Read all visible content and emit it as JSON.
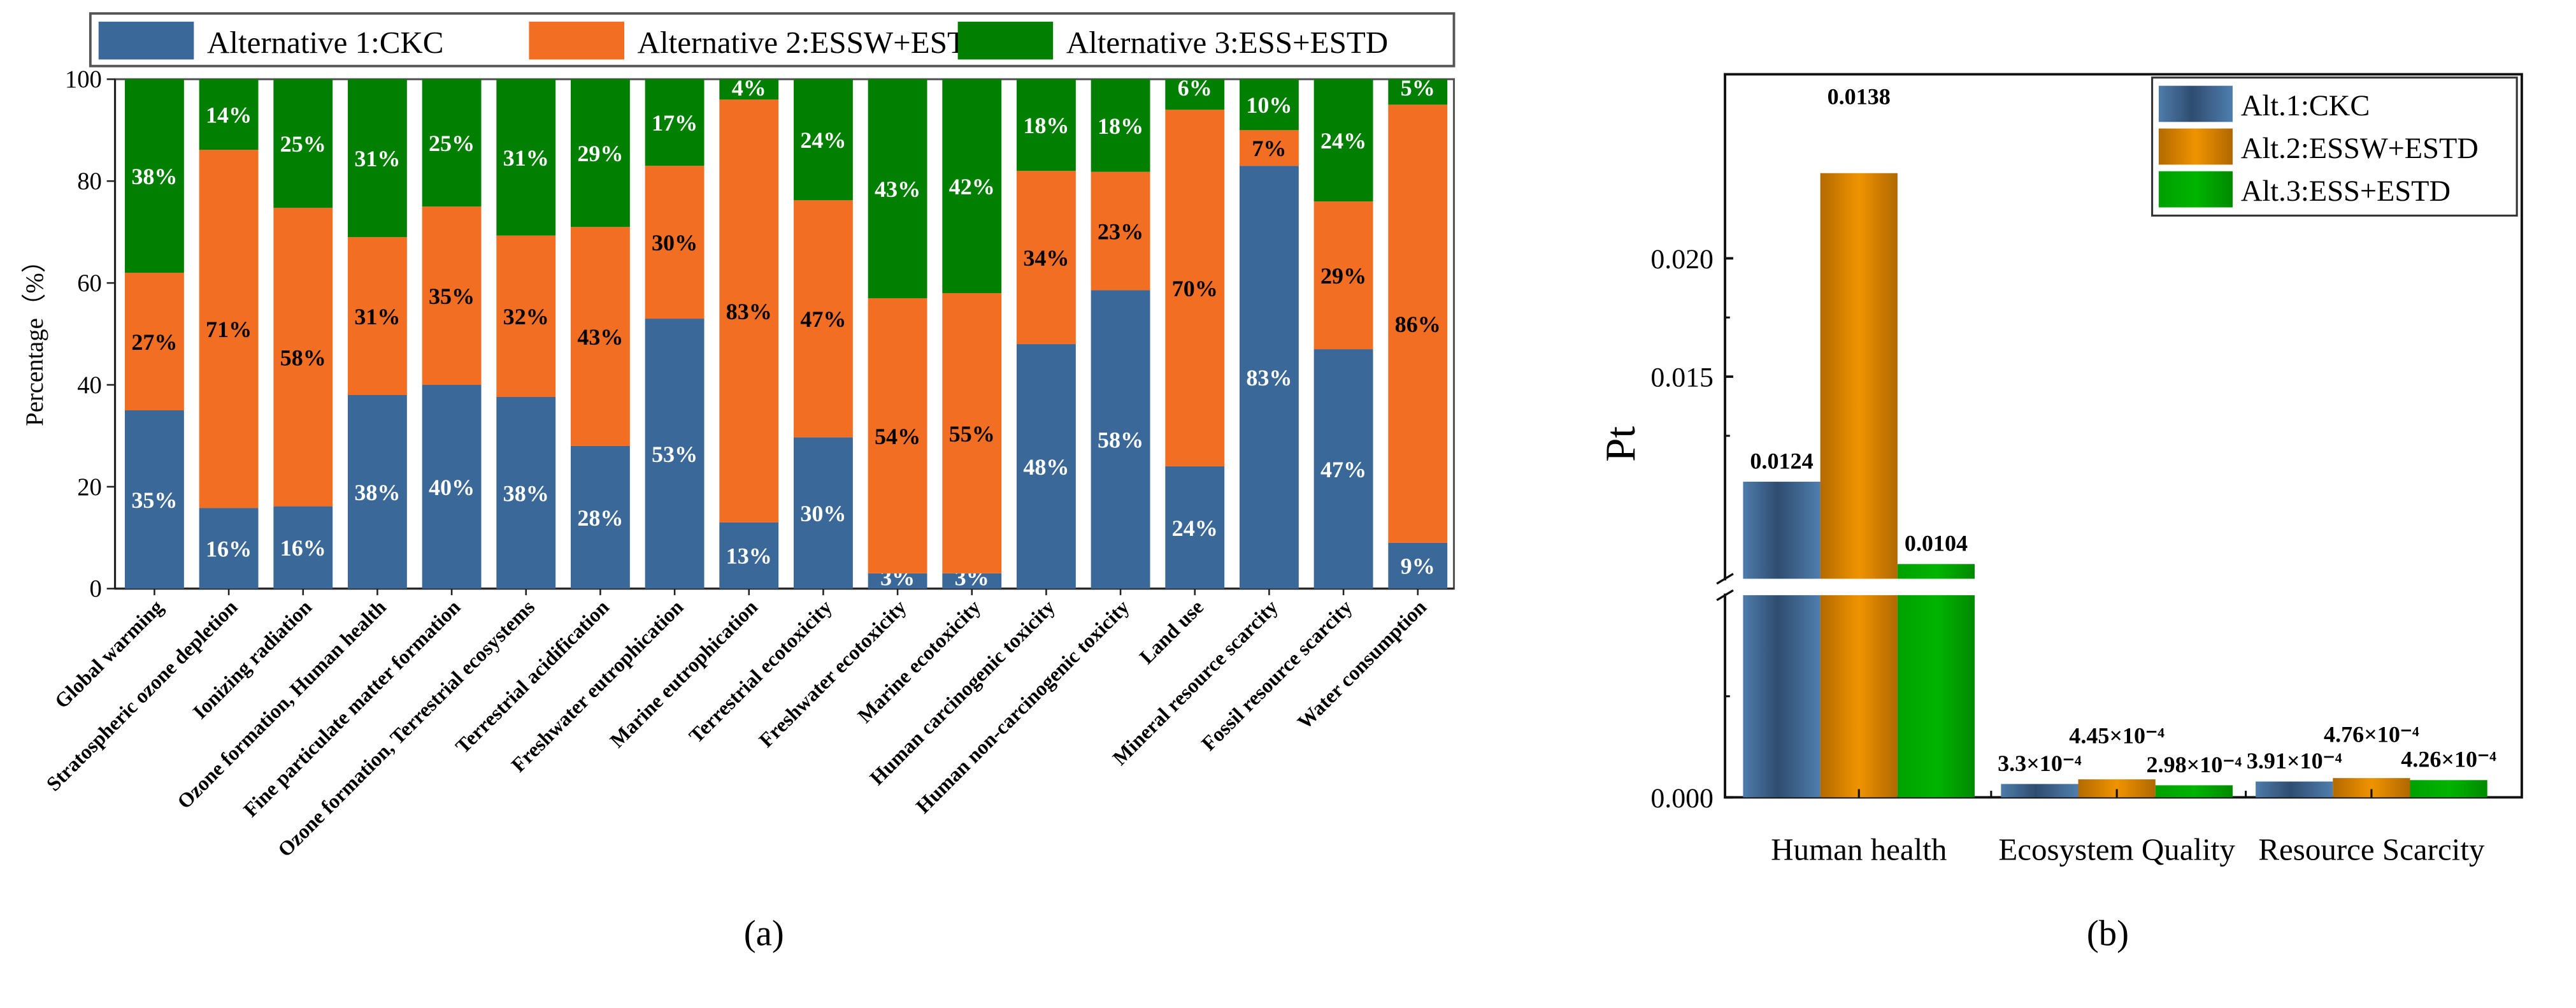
{
  "chart_data": [
    {
      "panel_label": "(a)",
      "type": "bar",
      "stacked": true,
      "ylabel": "Percentage（%）",
      "ylim": [
        0,
        100
      ],
      "yticks": [
        "0",
        "20",
        "40",
        "60",
        "80",
        "100"
      ],
      "legend_position": "top",
      "categories": [
        "Global warming",
        "Stratospheric ozone depletion",
        "Ionizing radiation",
        "Ozone formation, Human health",
        "Fine particulate matter formation",
        "Ozone formation, Terrestrial ecosystems",
        "Terrestrial acidification",
        "Freshwater eutrophication",
        "Marine eutrophication",
        "Terrestrial ecotoxicity",
        "Freshwater ecotoxicity",
        "Marine ecotoxicity",
        "Human carcinogenic toxicity",
        "Human non-carcinogenic toxicity",
        "Land use",
        "Mineral resource scarcity",
        "Fossil resource scarcity",
        "Water consumption"
      ],
      "series": [
        {
          "name": "Alternative 1:CKC",
          "color": "#3a6898",
          "label_color": "#ffffff",
          "values": [
            35,
            16,
            16,
            38,
            40,
            38,
            28,
            53,
            13,
            30,
            3,
            3,
            48,
            58,
            24,
            83,
            47,
            9
          ],
          "labels": [
            "35%",
            "16%",
            "16%",
            "38%",
            "40%",
            "38%",
            "28%",
            "53%",
            "13%",
            "30%",
            "3%",
            "3%",
            "48%",
            "58%",
            "24%",
            "83%",
            "47%",
            "9%"
          ]
        },
        {
          "name": "Alternative 2:ESSW+ESTD",
          "color": "#f26e22",
          "label_color": "#000000",
          "values": [
            27,
            71,
            58,
            31,
            35,
            32,
            43,
            30,
            83,
            47,
            54,
            55,
            34,
            23,
            70,
            7,
            29,
            86
          ],
          "labels": [
            "27%",
            "71%",
            "58%",
            "31%",
            "35%",
            "32%",
            "43%",
            "30%",
            "83%",
            "47%",
            "54%",
            "55%",
            "34%",
            "23%",
            "70%",
            "7%",
            "29%",
            "86%"
          ]
        },
        {
          "name": "Alternative 3:ESS+ESTD",
          "color": "#007f00",
          "label_color": "#ffffff",
          "values": [
            38,
            14,
            25,
            31,
            25,
            31,
            29,
            17,
            4,
            24,
            43,
            42,
            18,
            18,
            6,
            10,
            24,
            5
          ],
          "labels": [
            "38%",
            "14%",
            "25%",
            "31%",
            "25%",
            "31%",
            "29%",
            "17%",
            "4%",
            "24%",
            "43%",
            "42%",
            "18%",
            "18%",
            "6%",
            "10%",
            "24%",
            "5%"
          ]
        }
      ]
    },
    {
      "panel_label": "(b)",
      "type": "bar",
      "ylabel": "Pt",
      "yticks": [
        "0.000",
        "0.015",
        "0.020"
      ],
      "ytick_values": [
        0,
        0.015,
        0.02
      ],
      "axis_break": [
        0.005,
        0.0065
      ],
      "legend_position": "top-right",
      "categories": [
        "Human health",
        "Ecosystem Quality",
        "Resource Scarcity"
      ],
      "series": [
        {
          "name": "Alt.1:CKC",
          "color": "#3d6694",
          "values": [
            0.0124,
            0.00033,
            0.000391
          ],
          "plotted_values": [
            0.01056,
            0.00033,
            0.000391
          ],
          "labels": [
            "0.0124",
            "3.3×10⁻⁴",
            "3.91×10⁻⁴"
          ]
        },
        {
          "name": "Alt.2:ESSW+ESTD",
          "color": "#e88a00",
          "values": [
            0.0138,
            0.000445,
            0.000476
          ],
          "plotted_values": [
            0.0236,
            0.000445,
            0.000476
          ],
          "labels": [
            "0.0138",
            "4.45×10⁻⁴",
            "4.76×10⁻⁴"
          ]
        },
        {
          "name": "Alt.3:ESS+ESTD",
          "color": "#00a300",
          "values": [
            0.0104,
            0.000298,
            0.000426
          ],
          "plotted_values": [
            0.00708,
            0.000298,
            0.000426
          ],
          "labels": [
            "0.0104",
            "2.98×10⁻⁴",
            "4.26×10⁻⁴"
          ]
        }
      ]
    }
  ]
}
